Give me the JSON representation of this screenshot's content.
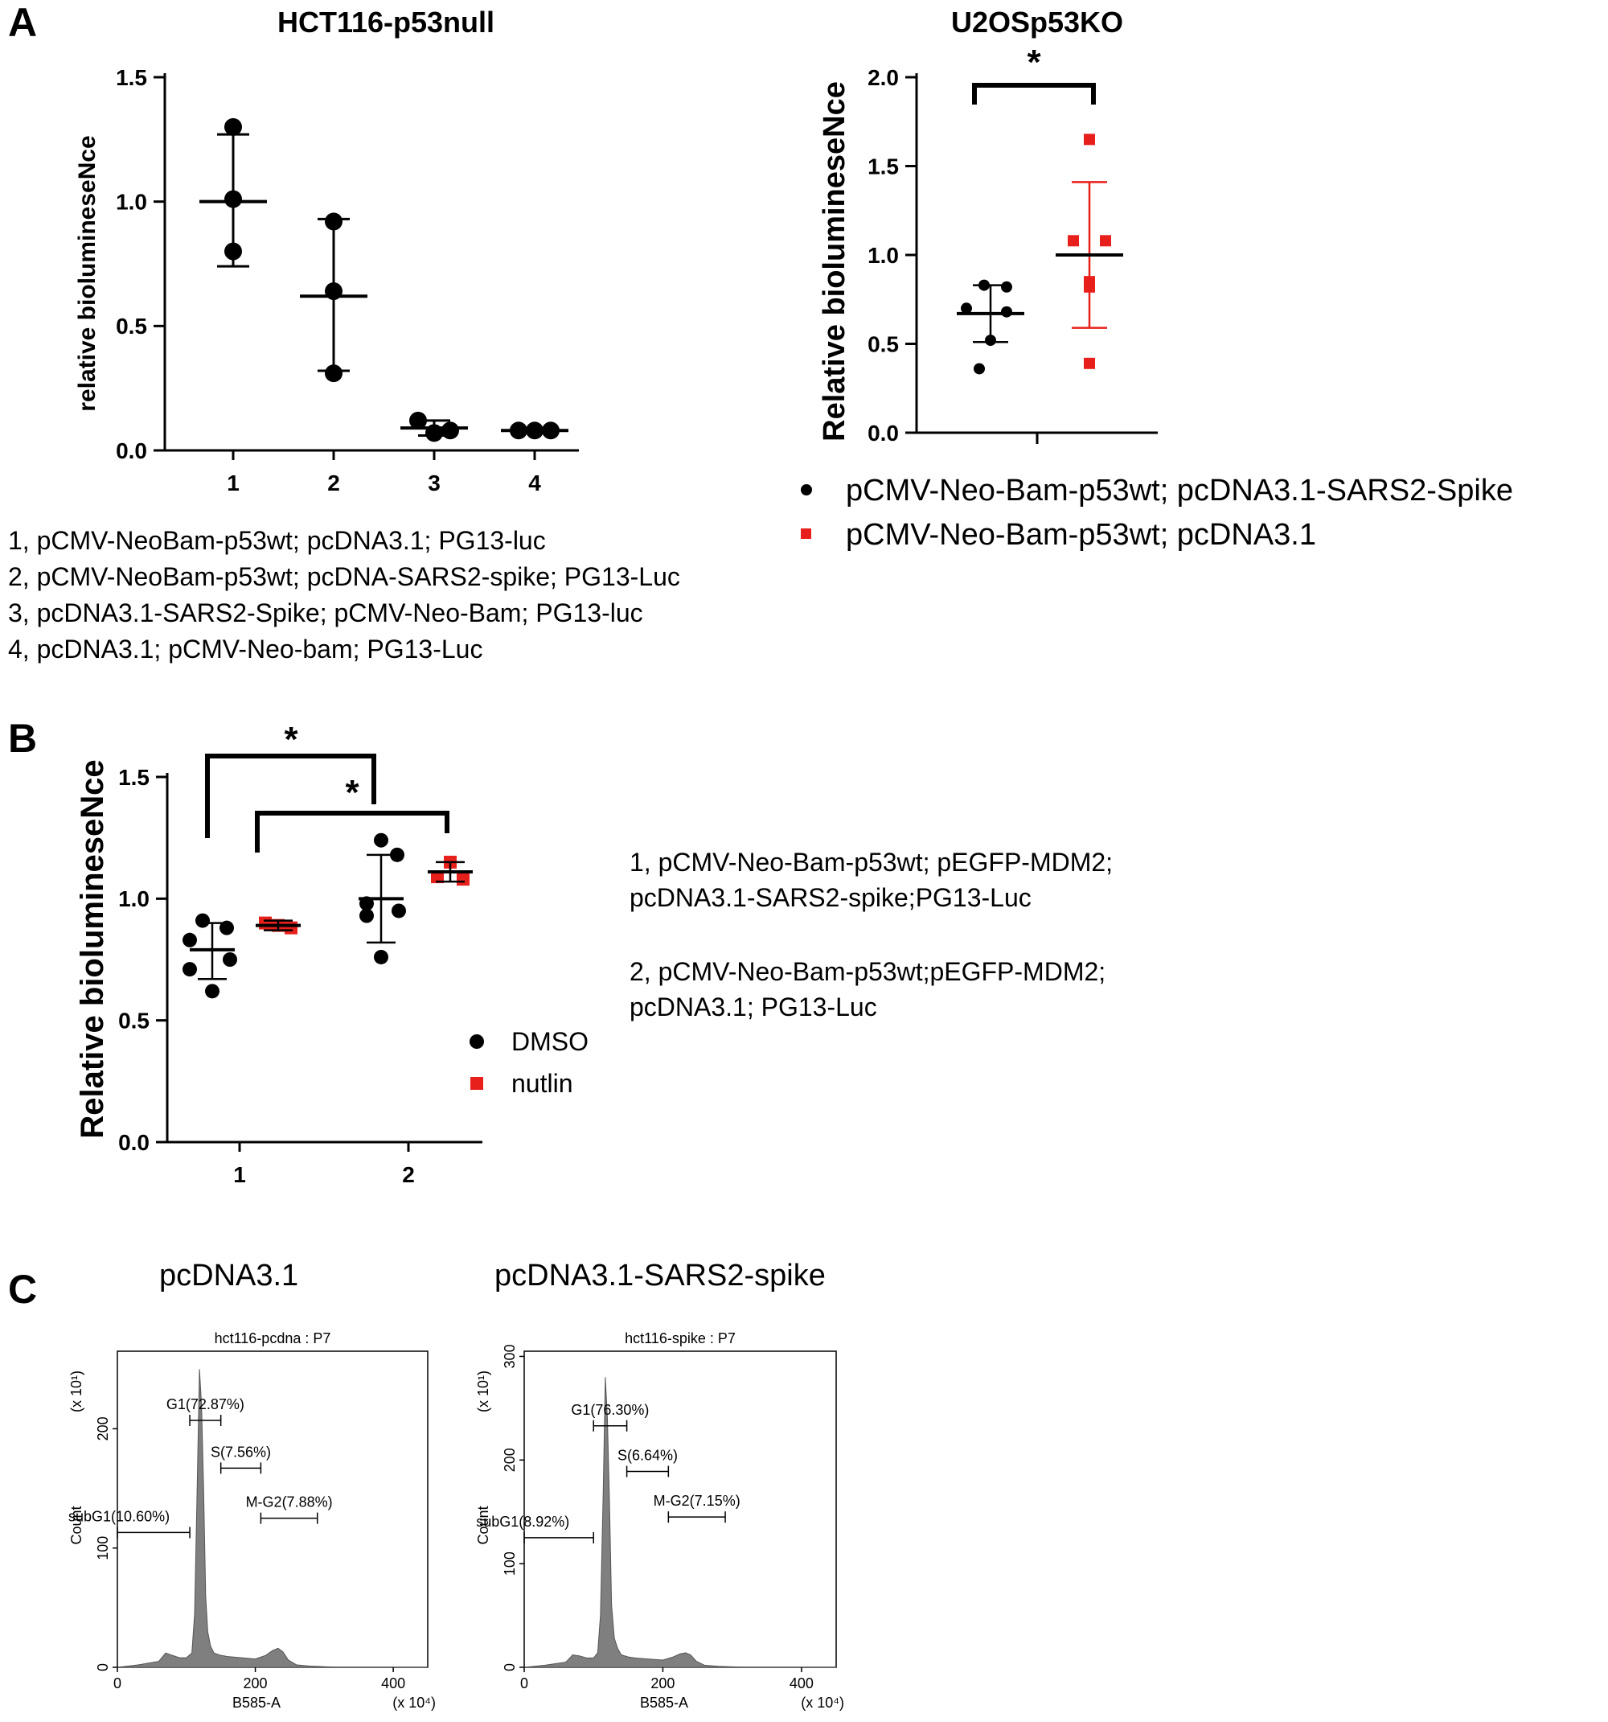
{
  "panels": {
    "A": {
      "letter": "A",
      "legend_lines": [
        "1, pCMV-NeoBam-p53wt; pcDNA3.1; PG13-luc",
        "2, pCMV-NeoBam-p53wt; pcDNA-SARS2-spike; PG13-Luc",
        "3, pcDNA3.1-SARS2-Spike; pCMV-Neo-Bam; PG13-luc",
        "4, pcDNA3.1; pCMV-Neo-bam; PG13-Luc"
      ],
      "right_legend": [
        {
          "label": "pCMV-Neo-Bam-p53wt; pcDNA3.1-SARS2-Spike",
          "marker": "circle",
          "color": "#000000"
        },
        {
          "label": "pCMV-Neo-Bam-p53wt; pcDNA3.1",
          "marker": "square",
          "color": "#e8201c"
        }
      ]
    },
    "B": {
      "letter": "B",
      "notes": [
        "1, pCMV-Neo-Bam-p53wt; pEGFP-MDM2;",
        "pcDNA3.1-SARS2-spike;PG13-Luc",
        "2, pCMV-Neo-Bam-p53wt;pEGFP-MDM2;",
        "pcDNA3.1; PG13-Luc"
      ]
    },
    "C": {
      "letter": "C",
      "titles": [
        "pcDNA3.1",
        "pcDNA3.1-SARS2-spike"
      ]
    }
  },
  "colors": {
    "black": "#000000",
    "red": "#e8201c",
    "hist_fill": "#7f7f7f"
  },
  "chart_data": [
    {
      "id": "A_left",
      "type": "scatter",
      "title": "HCT116-p53null",
      "xlabel": "",
      "ylabel": "relative biolumineseNce",
      "ylabel_text": "relative biolumineseNce",
      "categories": [
        "1",
        "2",
        "3",
        "4"
      ],
      "yticks": [
        "0.0",
        "0.5",
        "1.0",
        "1.5"
      ],
      "ylim": [
        0,
        1.5
      ],
      "groups": [
        {
          "category": "1",
          "points": [
            1.3,
            1.01,
            0.8
          ],
          "mean": 1.0,
          "sd_low": 0.74,
          "sd_high": 1.27
        },
        {
          "category": "2",
          "points": [
            0.92,
            0.64,
            0.31
          ],
          "mean": 0.62,
          "sd_low": 0.32,
          "sd_high": 0.93
        },
        {
          "category": "3",
          "points": [
            0.12,
            0.07,
            0.08
          ],
          "mean": 0.09,
          "sd_low": 0.06,
          "sd_high": 0.12
        },
        {
          "category": "4",
          "points": [
            0.08,
            0.08,
            0.08
          ],
          "mean": 0.08,
          "sd_low": 0.08,
          "sd_high": 0.08
        }
      ]
    },
    {
      "id": "A_right",
      "type": "scatter",
      "title": "U2OSp53KO",
      "ylabel": "Relative biolumineseNce",
      "ylabel_text": "Relative biolumineseNce",
      "yticks": [
        "0.0",
        "0.5",
        "1.0",
        "1.5",
        "2.0"
      ],
      "ylim": [
        0,
        2.0
      ],
      "significance": "*",
      "series": [
        {
          "name": "pCMV-Neo-Bam-p53wt; pcDNA3.1-SARS2-Spike",
          "color": "#000000",
          "marker": "circle",
          "points": [
            0.83,
            0.82,
            0.7,
            0.68,
            0.52,
            0.36
          ],
          "mean": 0.67,
          "sd_low": 0.51,
          "sd_high": 0.83
        },
        {
          "name": "pCMV-Neo-Bam-p53wt; pcDNA3.1",
          "color": "#e8201c",
          "marker": "square",
          "points": [
            1.65,
            1.08,
            1.08,
            0.85,
            0.82,
            0.39
          ],
          "mean": 1.0,
          "sd_low": 0.59,
          "sd_high": 1.41
        }
      ]
    },
    {
      "id": "B",
      "type": "scatter",
      "ylabel": "Relative biolumineseNce",
      "ylabel_text": "Relative biolumineseNce",
      "categories": [
        "1",
        "2"
      ],
      "yticks": [
        "0.0",
        "0.5",
        "1.0",
        "1.5"
      ],
      "ylim": [
        0,
        1.5
      ],
      "significance": [
        "*",
        "*"
      ],
      "series": [
        {
          "name": "DMSO",
          "color": "#000000",
          "marker": "circle",
          "groups": [
            {
              "category": "1",
              "points": [
                0.91,
                0.88,
                0.83,
                0.75,
                0.71,
                0.62
              ],
              "mean": 0.79,
              "sd_low": 0.67,
              "sd_high": 0.9
            },
            {
              "category": "2",
              "points": [
                1.24,
                1.18,
                0.98,
                0.95,
                0.93,
                0.76
              ],
              "mean": 1.0,
              "sd_low": 0.82,
              "sd_high": 1.18
            }
          ]
        },
        {
          "name": "nutlin",
          "color": "#e8201c",
          "marker": "square",
          "groups": [
            {
              "category": "1",
              "points": [
                0.9,
                0.89,
                0.88
              ],
              "mean": 0.89,
              "sd_low": 0.87,
              "sd_high": 0.91
            },
            {
              "category": "2",
              "points": [
                1.15,
                1.09,
                1.08
              ],
              "mean": 1.11,
              "sd_low": 1.07,
              "sd_high": 1.15
            }
          ]
        }
      ]
    },
    {
      "id": "C_left",
      "type": "area",
      "title": "hct116-pcdna : P7",
      "xlabel": "B585-A",
      "ylabel": "Count",
      "x_multiplier": "(x 10⁴)",
      "y_multiplier": "(x 10¹)",
      "xlim": [
        0,
        450
      ],
      "ylim": [
        0,
        265
      ],
      "xticks": [
        "0",
        "200",
        "400"
      ],
      "yticks": [
        "0",
        "100",
        "200"
      ],
      "gates": [
        {
          "label": "subG1(10.60%)",
          "x0": 0,
          "x1": 105,
          "y": 113
        },
        {
          "label": "G1(72.87%)",
          "x0": 105,
          "x1": 150,
          "y": 207
        },
        {
          "label": "S(7.56%)",
          "x0": 150,
          "x1": 208,
          "y": 167
        },
        {
          "label": "M-G2(7.88%)",
          "x0": 208,
          "x1": 290,
          "y": 125
        }
      ],
      "histogram": {
        "x": [
          0,
          30,
          60,
          70,
          80,
          90,
          100,
          108,
          112,
          116,
          119,
          122,
          125,
          128,
          131,
          135,
          140,
          150,
          160,
          180,
          200,
          215,
          225,
          233,
          240,
          248,
          260,
          280,
          320,
          400,
          450
        ],
        "y": [
          0,
          2,
          5,
          12,
          10,
          8,
          8,
          12,
          45,
          160,
          250,
          220,
          150,
          60,
          30,
          18,
          12,
          10,
          9,
          8,
          7,
          10,
          14,
          16,
          13,
          6,
          2,
          1,
          0,
          0,
          0
        ]
      }
    },
    {
      "id": "C_right",
      "type": "area",
      "title": "hct116-spike : P7",
      "xlabel": "B585-A",
      "ylabel": "Count",
      "x_multiplier": "(x 10⁴)",
      "y_multiplier": "(x 10¹)",
      "xlim": [
        0,
        450
      ],
      "ylim": [
        0,
        305
      ],
      "xticks": [
        "0",
        "200",
        "400"
      ],
      "yticks": [
        "0",
        "100",
        "200",
        "300"
      ],
      "gates": [
        {
          "label": "subG1(8.92%)",
          "x0": 0,
          "x1": 100,
          "y": 125
        },
        {
          "label": "G1(76.30%)",
          "x0": 100,
          "x1": 148,
          "y": 233
        },
        {
          "label": "S(6.64%)",
          "x0": 148,
          "x1": 208,
          "y": 189
        },
        {
          "label": "M-G2(7.15%)",
          "x0": 208,
          "x1": 290,
          "y": 145
        }
      ],
      "histogram": {
        "x": [
          0,
          30,
          60,
          70,
          80,
          90,
          100,
          106,
          110,
          114,
          117,
          120,
          123,
          126,
          130,
          135,
          140,
          150,
          160,
          180,
          200,
          215,
          225,
          233,
          240,
          248,
          260,
          280,
          320,
          400,
          450
        ],
        "y": [
          0,
          2,
          5,
          12,
          11,
          9,
          9,
          14,
          50,
          170,
          280,
          240,
          160,
          60,
          28,
          18,
          12,
          10,
          9,
          8,
          7,
          10,
          13,
          14,
          12,
          6,
          2,
          1,
          0,
          0,
          0
        ]
      }
    }
  ]
}
